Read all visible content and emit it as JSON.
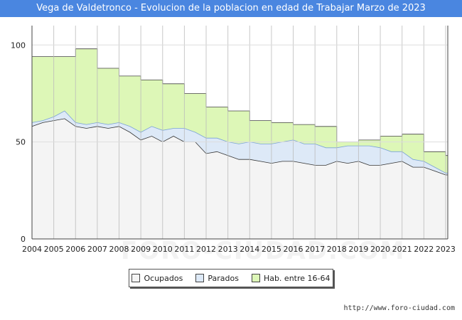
{
  "chart_data": {
    "type": "area",
    "title": "Vega de Valdetronco - Evolucion de la poblacion en edad de Trabajar Marzo de 2023",
    "xlabel": "",
    "ylabel": "",
    "x_ticks": [
      "2004",
      "2005",
      "2006",
      "2007",
      "2008",
      "2009",
      "2010",
      "2011",
      "2012",
      "2013",
      "2014",
      "2015",
      "2016",
      "2017",
      "2018",
      "2019",
      "2020",
      "2021",
      "2022",
      "2023"
    ],
    "y_ticks": [
      0,
      50,
      100
    ],
    "xlim": [
      2004,
      2023.1
    ],
    "ylim": [
      0,
      110
    ],
    "grid": true,
    "legend_position": "bottom",
    "series": [
      {
        "name": "Hab. entre 16-64",
        "color": "#ddf7b7",
        "stroke": "#444444",
        "step": true,
        "x": [
          2004,
          2005,
          2006,
          2007,
          2008,
          2009,
          2010,
          2011,
          2012,
          2013,
          2014,
          2015,
          2016,
          2017,
          2018,
          2019,
          2020,
          2021,
          2022,
          2023
        ],
        "values": [
          94,
          94,
          98,
          88,
          84,
          82,
          80,
          75,
          68,
          66,
          61,
          60,
          59,
          58,
          50,
          51,
          53,
          54,
          45,
          43
        ]
      },
      {
        "name": "Parados",
        "color": "#dde9f7",
        "stroke": "#7aa2d6",
        "x": [
          2004,
          2004.5,
          2005,
          2005.5,
          2006,
          2006.5,
          2007,
          2007.5,
          2008,
          2008.5,
          2009,
          2009.5,
          2010,
          2010.5,
          2011,
          2011.5,
          2012,
          2012.5,
          2013,
          2013.5,
          2014,
          2014.5,
          2015,
          2015.5,
          2016,
          2016.5,
          2017,
          2017.5,
          2018,
          2018.5,
          2019,
          2019.5,
          2020,
          2020.5,
          2021,
          2021.5,
          2022,
          2022.5,
          2023
        ],
        "values": [
          60,
          61,
          63,
          66,
          60,
          59,
          60,
          59,
          60,
          58,
          55,
          58,
          56,
          57,
          57,
          55,
          52,
          52,
          50,
          49,
          50,
          49,
          49,
          50,
          51,
          49,
          49,
          47,
          47,
          48,
          48,
          48,
          47,
          45,
          45,
          41,
          40,
          37,
          34
        ]
      },
      {
        "name": "Ocupados",
        "color": "#f4f4f4",
        "stroke": "#333333",
        "x": [
          2004,
          2004.5,
          2005,
          2005.5,
          2006,
          2006.5,
          2007,
          2007.5,
          2008,
          2008.5,
          2009,
          2009.5,
          2010,
          2010.5,
          2011,
          2011.5,
          2012,
          2012.5,
          2013,
          2013.5,
          2014,
          2014.5,
          2015,
          2015.5,
          2016,
          2016.5,
          2017,
          2017.5,
          2018,
          2018.5,
          2019,
          2019.5,
          2020,
          2020.5,
          2021,
          2021.5,
          2022,
          2022.5,
          2023
        ],
        "values": [
          58,
          60,
          61,
          62,
          58,
          57,
          58,
          57,
          58,
          55,
          51,
          53,
          50,
          53,
          50,
          50,
          44,
          45,
          43,
          41,
          41,
          40,
          39,
          40,
          40,
          39,
          38,
          38,
          40,
          39,
          40,
          38,
          38,
          39,
          40,
          37,
          37,
          35,
          33
        ]
      }
    ]
  },
  "legend": {
    "ocupados": "Ocupados",
    "parados": "Parados",
    "hab": "Hab. entre 16-64"
  },
  "source": "http://www.foro-ciudad.com",
  "watermark": "FORO-CIUDAD.COM"
}
